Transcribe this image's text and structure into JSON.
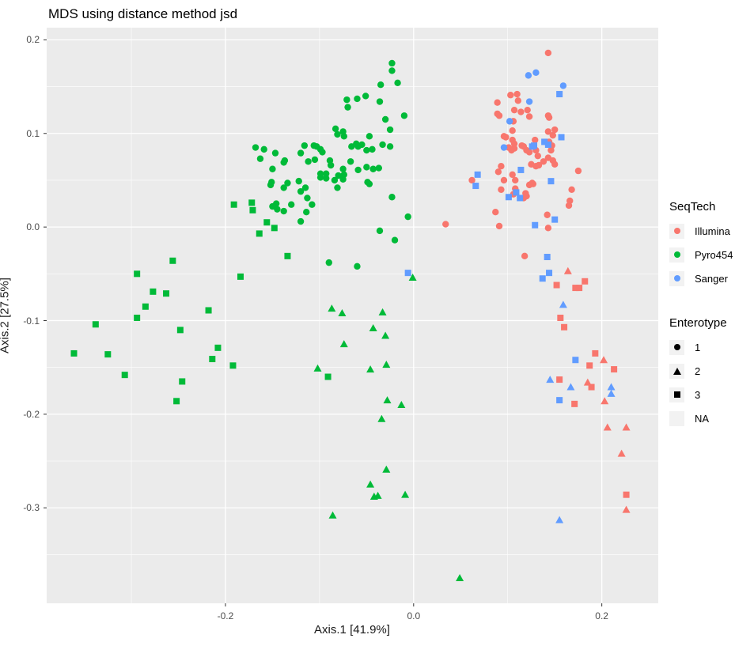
{
  "title": "MDS using distance method jsd",
  "axes": {
    "x": {
      "title": "Axis.1   [41.9%]"
    },
    "y": {
      "title": "Axis.2   [27.5%]"
    }
  },
  "legend": {
    "seqtech": {
      "title": "SeqTech",
      "items": [
        {
          "label": "Illumina",
          "color": "#F8766D"
        },
        {
          "label": "Pyro454",
          "color": "#00BA38"
        },
        {
          "label": "Sanger",
          "color": "#619CFF"
        }
      ]
    },
    "enterotype": {
      "title": "Enterotype",
      "items": [
        {
          "label": "1",
          "shape": "circle"
        },
        {
          "label": "2",
          "shape": "triangle"
        },
        {
          "label": "3",
          "shape": "square"
        },
        {
          "label": "NA",
          "shape": "none"
        }
      ]
    }
  },
  "colors": {
    "panel_bg": "#EBEBEB",
    "grid": "#FFFFFF",
    "tick_text": "#4D4D4D",
    "tick_mark": "#333333",
    "legend_key_bg": "#F2F2F2",
    "illumina": "#F8766D",
    "pyro454": "#00BA38",
    "sanger": "#619CFF"
  },
  "chart_data": {
    "type": "scatter",
    "title": "MDS using distance method jsd",
    "xlabel": "Axis.1   [41.9%]",
    "ylabel": "Axis.2   [27.5%]",
    "xlim": [
      -0.39,
      0.26
    ],
    "ylim": [
      -0.402,
      0.213
    ],
    "grid": true,
    "legend_position": "right",
    "x_major_ticks": [
      {
        "v": -0.2,
        "label": "-0.2"
      },
      {
        "v": 0.0,
        "label": "0.0"
      },
      {
        "v": 0.2,
        "label": "0.2"
      }
    ],
    "x_minor_ticks": [
      -0.3,
      -0.1,
      0.1
    ],
    "y_major_ticks": [
      {
        "v": 0.2,
        "label": "0.2"
      },
      {
        "v": 0.1,
        "label": "0.1"
      },
      {
        "v": 0.0,
        "label": "0.0"
      },
      {
        "v": -0.1,
        "label": "-0.1"
      },
      {
        "v": -0.2,
        "label": "-0.2"
      },
      {
        "v": -0.3,
        "label": "-0.3"
      }
    ],
    "y_minor_ticks": [
      0.15,
      0.05,
      -0.05,
      -0.15,
      -0.25,
      -0.35
    ],
    "series": [
      {
        "name": "Illumina-1",
        "seqtech": "Illumina",
        "enterotype": "1",
        "color": "#F8766D",
        "shape": "circle",
        "points": [
          [
            0.143,
            0.186
          ],
          [
            0.089,
            0.133
          ],
          [
            0.103,
            0.141
          ],
          [
            0.11,
            0.142
          ],
          [
            0.111,
            0.135
          ],
          [
            0.089,
            0.121
          ],
          [
            0.091,
            0.119
          ],
          [
            0.107,
            0.125
          ],
          [
            0.114,
            0.123
          ],
          [
            0.121,
            0.125
          ],
          [
            0.123,
            0.118
          ],
          [
            0.106,
            0.113
          ],
          [
            0.143,
            0.119
          ],
          [
            0.144,
            0.117
          ],
          [
            0.148,
            0.098
          ],
          [
            0.105,
            0.103
          ],
          [
            0.096,
            0.097
          ],
          [
            0.098,
            0.096
          ],
          [
            0.105,
            0.093
          ],
          [
            0.107,
            0.089
          ],
          [
            0.101,
            0.085
          ],
          [
            0.104,
            0.082
          ],
          [
            0.107,
            0.084
          ],
          [
            0.115,
            0.087
          ],
          [
            0.117,
            0.086
          ],
          [
            0.12,
            0.082
          ],
          [
            0.123,
            0.08
          ],
          [
            0.129,
            0.093
          ],
          [
            0.13,
            0.082
          ],
          [
            0.143,
            0.102
          ],
          [
            0.15,
            0.104
          ],
          [
            0.144,
            0.091
          ],
          [
            0.147,
            0.087
          ],
          [
            0.146,
            0.082
          ],
          [
            0.138,
            0.07
          ],
          [
            0.143,
            0.074
          ],
          [
            0.148,
            0.071
          ],
          [
            0.13,
            0.065
          ],
          [
            0.093,
            0.065
          ],
          [
            0.09,
            0.059
          ],
          [
            0.175,
            0.06
          ],
          [
            0.132,
            0.076
          ],
          [
            0.125,
            0.067
          ],
          [
            0.133,
            0.066
          ],
          [
            0.15,
            0.067
          ],
          [
            0.062,
            0.05
          ],
          [
            0.096,
            0.05
          ],
          [
            0.105,
            0.056
          ],
          [
            0.108,
            0.05
          ],
          [
            0.126,
            0.047
          ],
          [
            0.127,
            0.046
          ],
          [
            0.093,
            0.04
          ],
          [
            0.108,
            0.041
          ],
          [
            0.119,
            0.036
          ],
          [
            0.168,
            0.04
          ],
          [
            0.106,
            0.035
          ],
          [
            0.123,
            0.045
          ],
          [
            0.117,
            0.031
          ],
          [
            0.12,
            0.033
          ],
          [
            0.166,
            0.028
          ],
          [
            0.165,
            0.023
          ],
          [
            0.087,
            0.016
          ],
          [
            0.091,
            0.001
          ],
          [
            0.142,
            0.013
          ],
          [
            0.143,
            -0.001
          ],
          [
            0.118,
            -0.031
          ],
          [
            0.034,
            0.003
          ]
        ]
      },
      {
        "name": "Illumina-2",
        "seqtech": "Illumina",
        "enterotype": "2",
        "color": "#F8766D",
        "shape": "triangle",
        "points": [
          [
            0.164,
            -0.047
          ],
          [
            0.202,
            -0.142
          ],
          [
            0.185,
            -0.166
          ],
          [
            0.203,
            -0.186
          ],
          [
            0.206,
            -0.214
          ],
          [
            0.226,
            -0.214
          ],
          [
            0.221,
            -0.242
          ],
          [
            0.226,
            -0.302
          ]
        ]
      },
      {
        "name": "Illumina-3",
        "seqtech": "Illumina",
        "enterotype": "3",
        "color": "#F8766D",
        "shape": "square",
        "points": [
          [
            0.152,
            -0.062
          ],
          [
            0.182,
            -0.058
          ],
          [
            0.172,
            -0.065
          ],
          [
            0.176,
            -0.065
          ],
          [
            0.156,
            -0.097
          ],
          [
            0.16,
            -0.107
          ],
          [
            0.193,
            -0.135
          ],
          [
            0.187,
            -0.148
          ],
          [
            0.213,
            -0.152
          ],
          [
            0.155,
            -0.163
          ],
          [
            0.189,
            -0.171
          ],
          [
            0.171,
            -0.189
          ],
          [
            0.226,
            -0.286
          ]
        ]
      },
      {
        "name": "Pyro454-1",
        "seqtech": "Pyro454",
        "enterotype": "1",
        "color": "#00BA38",
        "shape": "circle",
        "points": [
          [
            -0.023,
            0.175
          ],
          [
            -0.023,
            0.167
          ],
          [
            -0.035,
            0.152
          ],
          [
            -0.017,
            0.154
          ],
          [
            -0.06,
            0.137
          ],
          [
            -0.051,
            0.14
          ],
          [
            -0.071,
            0.136
          ],
          [
            -0.07,
            0.128
          ],
          [
            -0.036,
            0.134
          ],
          [
            -0.03,
            0.115
          ],
          [
            -0.01,
            0.119
          ],
          [
            -0.025,
            0.104
          ],
          [
            -0.083,
            0.105
          ],
          [
            -0.081,
            0.099
          ],
          [
            -0.075,
            0.102
          ],
          [
            -0.074,
            0.097
          ],
          [
            -0.047,
            0.097
          ],
          [
            -0.066,
            0.086
          ],
          [
            -0.061,
            0.089
          ],
          [
            -0.059,
            0.086
          ],
          [
            -0.055,
            0.088
          ],
          [
            -0.05,
            0.082
          ],
          [
            -0.044,
            0.083
          ],
          [
            -0.033,
            0.088
          ],
          [
            -0.025,
            0.086
          ],
          [
            -0.168,
            0.085
          ],
          [
            -0.159,
            0.083
          ],
          [
            -0.147,
            0.079
          ],
          [
            -0.163,
            0.073
          ],
          [
            -0.137,
            0.071
          ],
          [
            -0.138,
            0.069
          ],
          [
            -0.15,
            0.062
          ],
          [
            -0.151,
            0.048
          ],
          [
            -0.134,
            0.047
          ],
          [
            -0.12,
            0.079
          ],
          [
            -0.116,
            0.087
          ],
          [
            -0.112,
            0.07
          ],
          [
            -0.106,
            0.087
          ],
          [
            -0.103,
            0.086
          ],
          [
            -0.099,
            0.083
          ],
          [
            -0.097,
            0.08
          ],
          [
            -0.105,
            0.072
          ],
          [
            -0.089,
            0.071
          ],
          [
            -0.088,
            0.066
          ],
          [
            -0.075,
            0.062
          ],
          [
            -0.067,
            0.07
          ],
          [
            -0.059,
            0.061
          ],
          [
            -0.05,
            0.064
          ],
          [
            -0.043,
            0.062
          ],
          [
            -0.037,
            0.063
          ],
          [
            -0.099,
            0.057
          ],
          [
            -0.093,
            0.057
          ],
          [
            -0.08,
            0.055
          ],
          [
            -0.074,
            0.056
          ],
          [
            -0.049,
            0.048
          ],
          [
            -0.152,
            0.045
          ],
          [
            -0.138,
            0.042
          ],
          [
            -0.146,
            0.025
          ],
          [
            -0.15,
            0.022
          ],
          [
            -0.145,
            0.019
          ],
          [
            -0.138,
            0.017
          ],
          [
            -0.13,
            0.024
          ],
          [
            -0.122,
            0.049
          ],
          [
            -0.12,
            0.038
          ],
          [
            -0.115,
            0.042
          ],
          [
            -0.113,
            0.031
          ],
          [
            -0.108,
            0.024
          ],
          [
            -0.114,
            0.016
          ],
          [
            -0.12,
            0.006
          ],
          [
            -0.099,
            0.053
          ],
          [
            -0.093,
            0.052
          ],
          [
            -0.084,
            0.05
          ],
          [
            -0.075,
            0.051
          ],
          [
            -0.081,
            0.042
          ],
          [
            -0.047,
            0.046
          ],
          [
            -0.023,
            0.032
          ],
          [
            -0.006,
            0.011
          ],
          [
            -0.036,
            -0.004
          ],
          [
            -0.02,
            -0.014
          ],
          [
            -0.09,
            -0.038
          ],
          [
            -0.06,
            -0.042
          ]
        ]
      },
      {
        "name": "Pyro454-2",
        "seqtech": "Pyro454",
        "enterotype": "2",
        "color": "#00BA38",
        "shape": "triangle",
        "points": [
          [
            -0.087,
            -0.087
          ],
          [
            -0.076,
            -0.092
          ],
          [
            -0.033,
            -0.091
          ],
          [
            -0.043,
            -0.108
          ],
          [
            -0.03,
            -0.116
          ],
          [
            -0.074,
            -0.125
          ],
          [
            -0.102,
            -0.151
          ],
          [
            -0.046,
            -0.152
          ],
          [
            -0.029,
            -0.147
          ],
          [
            -0.028,
            -0.185
          ],
          [
            -0.013,
            -0.19
          ],
          [
            -0.034,
            -0.205
          ],
          [
            -0.029,
            -0.259
          ],
          [
            -0.046,
            -0.275
          ],
          [
            -0.042,
            -0.288
          ],
          [
            -0.038,
            -0.287
          ],
          [
            -0.009,
            -0.286
          ],
          [
            -0.086,
            -0.308
          ],
          [
            -0.001,
            -0.054
          ],
          [
            0.049,
            -0.375
          ]
        ]
      },
      {
        "name": "Pyro454-3",
        "seqtech": "Pyro454",
        "enterotype": "3",
        "color": "#00BA38",
        "shape": "square",
        "points": [
          [
            -0.191,
            0.024
          ],
          [
            -0.172,
            0.026
          ],
          [
            -0.171,
            0.018
          ],
          [
            -0.156,
            0.005
          ],
          [
            -0.148,
            -0.001
          ],
          [
            -0.164,
            -0.007
          ],
          [
            -0.134,
            -0.031
          ],
          [
            -0.184,
            -0.053
          ],
          [
            -0.256,
            -0.036
          ],
          [
            -0.294,
            -0.05
          ],
          [
            -0.277,
            -0.069
          ],
          [
            -0.263,
            -0.071
          ],
          [
            -0.285,
            -0.085
          ],
          [
            -0.294,
            -0.097
          ],
          [
            -0.218,
            -0.089
          ],
          [
            -0.338,
            -0.104
          ],
          [
            -0.248,
            -0.11
          ],
          [
            -0.361,
            -0.135
          ],
          [
            -0.325,
            -0.136
          ],
          [
            -0.208,
            -0.129
          ],
          [
            -0.214,
            -0.141
          ],
          [
            -0.192,
            -0.148
          ],
          [
            -0.307,
            -0.158
          ],
          [
            -0.246,
            -0.165
          ],
          [
            -0.252,
            -0.186
          ],
          [
            -0.091,
            -0.16
          ]
        ]
      },
      {
        "name": "Sanger-1",
        "seqtech": "Sanger",
        "enterotype": "1",
        "color": "#619CFF",
        "shape": "circle",
        "points": [
          [
            0.122,
            0.162
          ],
          [
            0.13,
            0.165
          ],
          [
            0.159,
            0.151
          ],
          [
            0.123,
            0.134
          ],
          [
            0.102,
            0.113
          ],
          [
            0.096,
            0.085
          ]
        ]
      },
      {
        "name": "Sanger-2",
        "seqtech": "Sanger",
        "enterotype": "2",
        "color": "#619CFF",
        "shape": "triangle",
        "points": [
          [
            0.159,
            -0.083
          ],
          [
            0.145,
            -0.163
          ],
          [
            0.167,
            -0.171
          ],
          [
            0.21,
            -0.171
          ],
          [
            0.21,
            -0.178
          ],
          [
            0.155,
            -0.313
          ]
        ]
      },
      {
        "name": "Sanger-3",
        "seqtech": "Sanger",
        "enterotype": "3",
        "color": "#619CFF",
        "shape": "square",
        "points": [
          [
            0.155,
            0.142
          ],
          [
            0.157,
            0.096
          ],
          [
            0.139,
            0.091
          ],
          [
            0.143,
            0.088
          ],
          [
            0.128,
            0.087
          ],
          [
            0.126,
            0.086
          ],
          [
            0.114,
            0.061
          ],
          [
            0.068,
            0.056
          ],
          [
            0.146,
            0.049
          ],
          [
            0.066,
            0.044
          ],
          [
            0.101,
            0.032
          ],
          [
            0.109,
            0.037
          ],
          [
            0.113,
            0.031
          ],
          [
            0.15,
            0.008
          ],
          [
            0.129,
            0.002
          ],
          [
            0.142,
            -0.032
          ],
          [
            0.144,
            -0.049
          ],
          [
            0.137,
            -0.055
          ],
          [
            -0.006,
            -0.049
          ],
          [
            0.172,
            -0.142
          ],
          [
            0.155,
            -0.185
          ]
        ]
      }
    ]
  }
}
